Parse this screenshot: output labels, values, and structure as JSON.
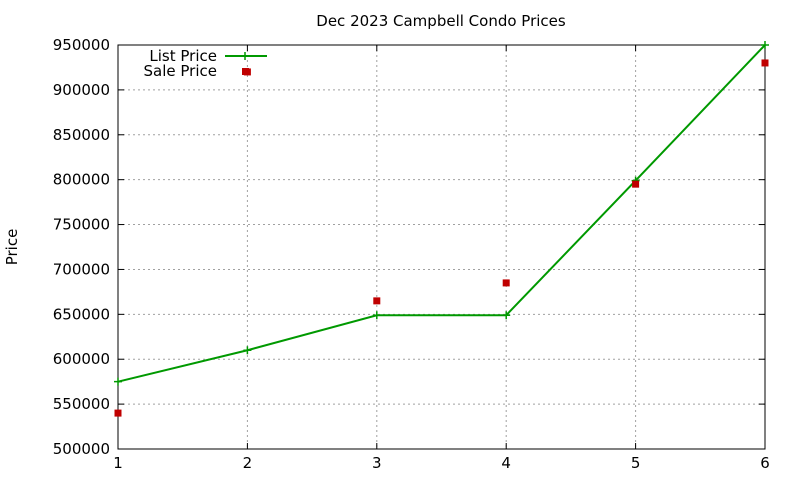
{
  "chart_data": {
    "type": "line",
    "title": "Dec 2023 Campbell Condo Prices",
    "xlabel": "",
    "ylabel": "Price",
    "x": [
      1,
      2,
      3,
      4,
      5,
      6
    ],
    "xlim": [
      1,
      6
    ],
    "ylim": [
      500000,
      950000
    ],
    "xticks": [
      "1",
      "2",
      "3",
      "4",
      "5",
      "6"
    ],
    "yticks": [
      "500000",
      "550000",
      "600000",
      "650000",
      "700000",
      "750000",
      "800000",
      "850000",
      "900000",
      "950000"
    ],
    "grid": true,
    "legend_position": "top-left",
    "series": [
      {
        "name": "List Price",
        "style": "line+marker",
        "color": "#009900",
        "marker": "plus",
        "values": [
          575000,
          610000,
          649000,
          649000,
          799000,
          950000
        ]
      },
      {
        "name": "Sale Price",
        "style": "points",
        "color": "#c00000",
        "marker": "square",
        "values": [
          540000,
          920000,
          665000,
          685000,
          795000,
          930000
        ]
      }
    ]
  }
}
